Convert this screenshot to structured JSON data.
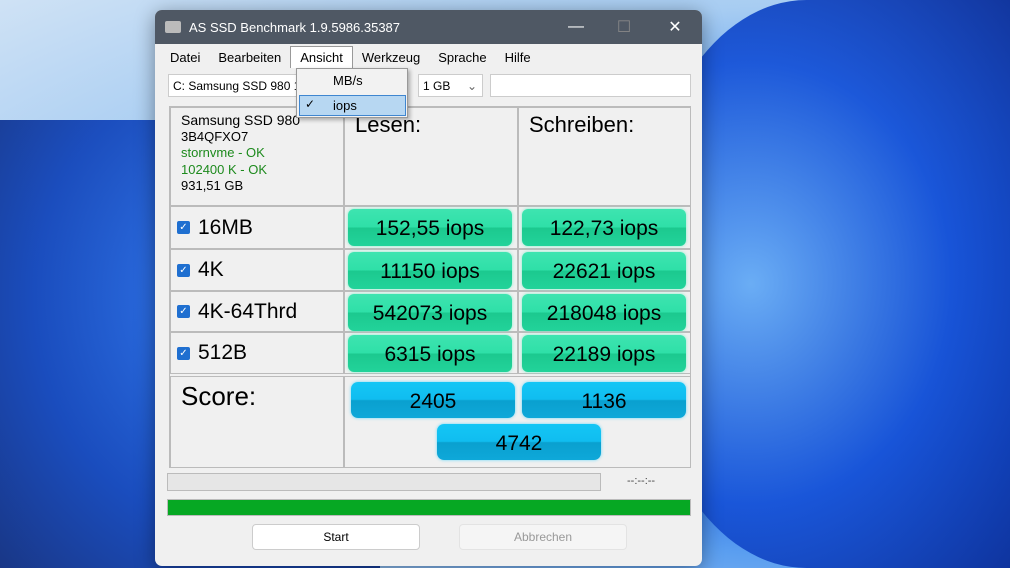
{
  "window": {
    "title": "AS SSD Benchmark 1.9.5986.35387",
    "minimize": "—",
    "maximize": "☐",
    "close": "✕"
  },
  "menu": [
    "Datei",
    "Bearbeiten",
    "Ansicht",
    "Werkzeug",
    "Sprache",
    "Hilfe"
  ],
  "dropdown": {
    "items": [
      "MB/s",
      "iops"
    ],
    "checked": "iops",
    "check": "✓"
  },
  "drive_select": "C: Samsung SSD 980 1",
  "size_select": "1 GB",
  "info": {
    "name": "Samsung SSD 980",
    "firmware": "3B4QFXO7",
    "driver": "stornvme - OK",
    "alignment": "102400 K - OK",
    "capacity": "931,51 GB"
  },
  "headers": {
    "read": "Lesen:",
    "write": "Schreiben:"
  },
  "rows": [
    {
      "label": "16MB",
      "read": "152,55 iops",
      "write": "122,73 iops"
    },
    {
      "label": "4K",
      "read": "11150 iops",
      "write": "22621 iops"
    },
    {
      "label": "4K-64Thrd",
      "read": "542073 iops",
      "write": "218048 iops"
    },
    {
      "label": "512B",
      "read": "6315 iops",
      "write": "22189 iops"
    }
  ],
  "score": {
    "label": "Score:",
    "read": "2405",
    "write": "1136",
    "total": "4742"
  },
  "time": "--:--:--",
  "progress": {
    "top": 0,
    "bottom": 100
  },
  "buttons": {
    "start": "Start",
    "cancel": "Abbrechen"
  },
  "colors": {
    "result": "#2fe0a8",
    "score": "#10bdf0",
    "progress": "#06a823"
  }
}
